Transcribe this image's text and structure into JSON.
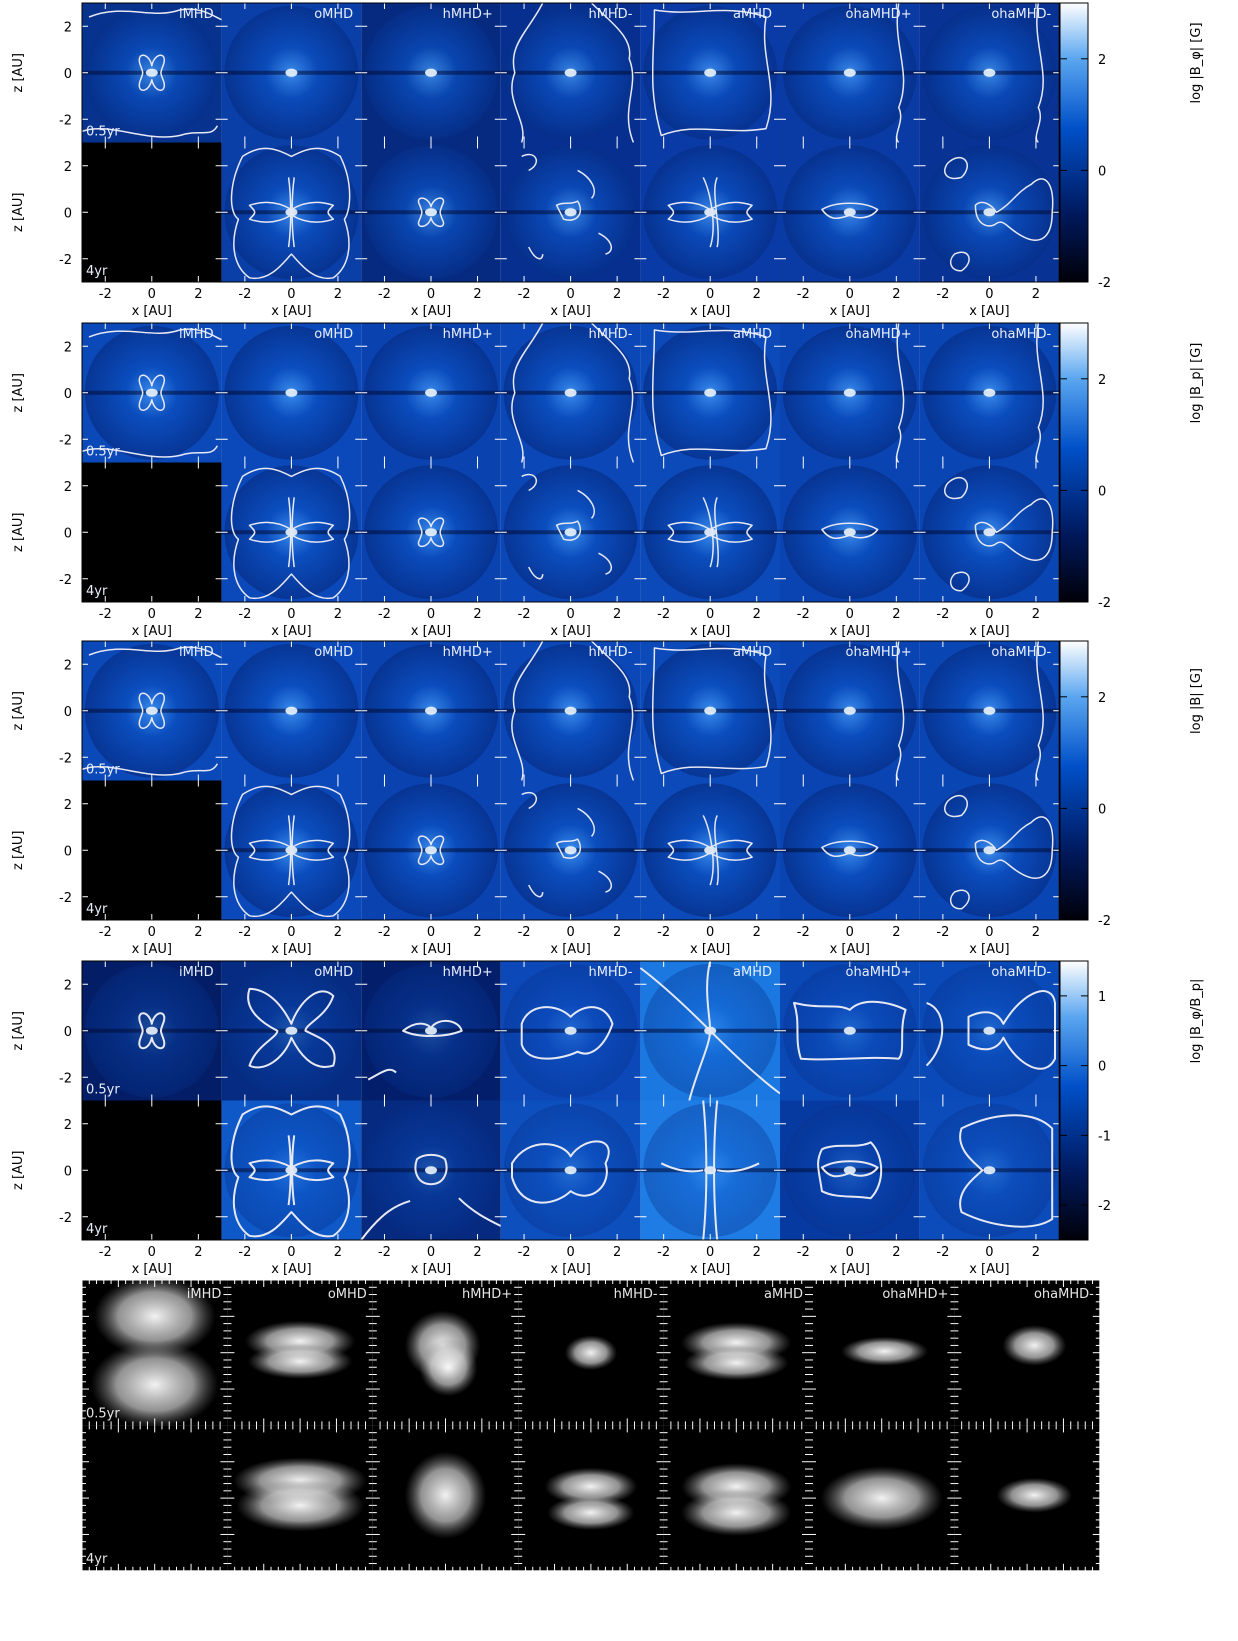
{
  "figure": {
    "models": [
      "iMHD",
      "oMHD",
      "hMHD+",
      "hMHD-",
      "aMHD",
      "ohaMHD+",
      "ohaMHD-"
    ],
    "times": [
      "0.5yr",
      "4yr"
    ],
    "xlabel": "x [AU]",
    "ylabel": "z [AU]",
    "x_ticks": [
      "-2",
      "0",
      "2"
    ],
    "z_ticks": [
      "2",
      "0",
      "-2"
    ]
  },
  "chart_data": [
    {
      "type": "heatmap",
      "panel": "Bphi",
      "colorbar_label": "log |B_φ| [G]",
      "colorbar_ticks": [
        "2",
        "0",
        "-2"
      ],
      "colorbar_range": [
        -2,
        3
      ],
      "xlim": [
        -3,
        3
      ],
      "ylim": [
        -3,
        3
      ]
    },
    {
      "type": "heatmap",
      "panel": "Bp",
      "colorbar_label": "log |B_p| [G]",
      "colorbar_ticks": [
        "2",
        "0",
        "-2"
      ],
      "colorbar_range": [
        -2,
        3
      ],
      "xlim": [
        -3,
        3
      ],
      "ylim": [
        -3,
        3
      ]
    },
    {
      "type": "heatmap",
      "panel": "B",
      "colorbar_label": "log |B| [G]",
      "colorbar_ticks": [
        "2",
        "0",
        "-2"
      ],
      "colorbar_range": [
        -2,
        3
      ],
      "xlim": [
        -3,
        3
      ],
      "ylim": [
        -3,
        3
      ]
    },
    {
      "type": "heatmap",
      "panel": "ratio",
      "colorbar_label": "log |B_φ/B_p|",
      "colorbar_ticks": [
        "1",
        "0",
        "-1",
        "-2"
      ],
      "colorbar_range": [
        -2.5,
        1.5
      ],
      "xlim": [
        -3,
        3
      ],
      "ylim": [
        -3,
        3
      ]
    }
  ],
  "field_lines": {
    "times": [
      "0.5yr",
      "4yr"
    ]
  },
  "colors": {
    "cmap_dark": "#000010",
    "cmap_mid": "#0050c8",
    "cmap_light": "#ffffff",
    "contour": "#e8e8f0"
  }
}
